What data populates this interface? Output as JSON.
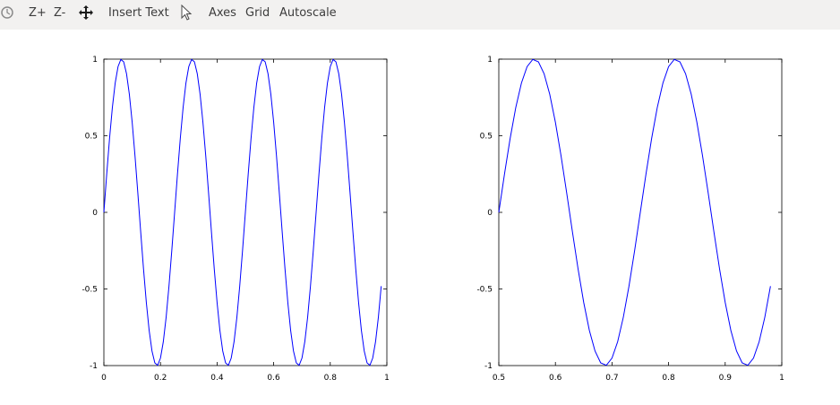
{
  "toolbar": {
    "rotate_icon": "rotate-icon",
    "zoom_in_label": "Z+",
    "zoom_out_label": "Z-",
    "pan_icon": "pan-move-icon",
    "insert_text_label": "Insert Text",
    "select_icon": "pointer-icon",
    "axes_label": "Axes",
    "grid_label": "Grid",
    "autoscale_label": "Autoscale"
  },
  "colors": {
    "line": "#0000ff",
    "toolbar_bg": "#f2f1f0"
  },
  "chart_data": [
    {
      "type": "line",
      "title": "",
      "xlabel": "",
      "ylabel": "",
      "xlim": [
        0,
        1
      ],
      "ylim": [
        -1,
        1
      ],
      "xticks": [
        "0",
        "0.2",
        "0.4",
        "0.6",
        "0.8",
        "1"
      ],
      "yticks": [
        "1",
        "0.5",
        "0",
        "-0.5",
        "-1"
      ],
      "grid": false,
      "series": [
        {
          "function": "sin(2*pi*4*x)",
          "x_start": 0,
          "x_end": 0.98,
          "x_step": 0.01
        }
      ]
    },
    {
      "type": "line",
      "title": "",
      "xlabel": "",
      "ylabel": "",
      "xlim": [
        0.5,
        1
      ],
      "ylim": [
        -1,
        1
      ],
      "xticks": [
        "0.5",
        "0.6",
        "0.7",
        "0.8",
        "0.9",
        "1"
      ],
      "yticks": [
        "1",
        "0.5",
        "0",
        "-0.5",
        "-1"
      ],
      "grid": false,
      "series": [
        {
          "function": "sin(2*pi*4*x)",
          "x_start": 0.5,
          "x_end": 0.98,
          "x_step": 0.01
        }
      ]
    }
  ]
}
